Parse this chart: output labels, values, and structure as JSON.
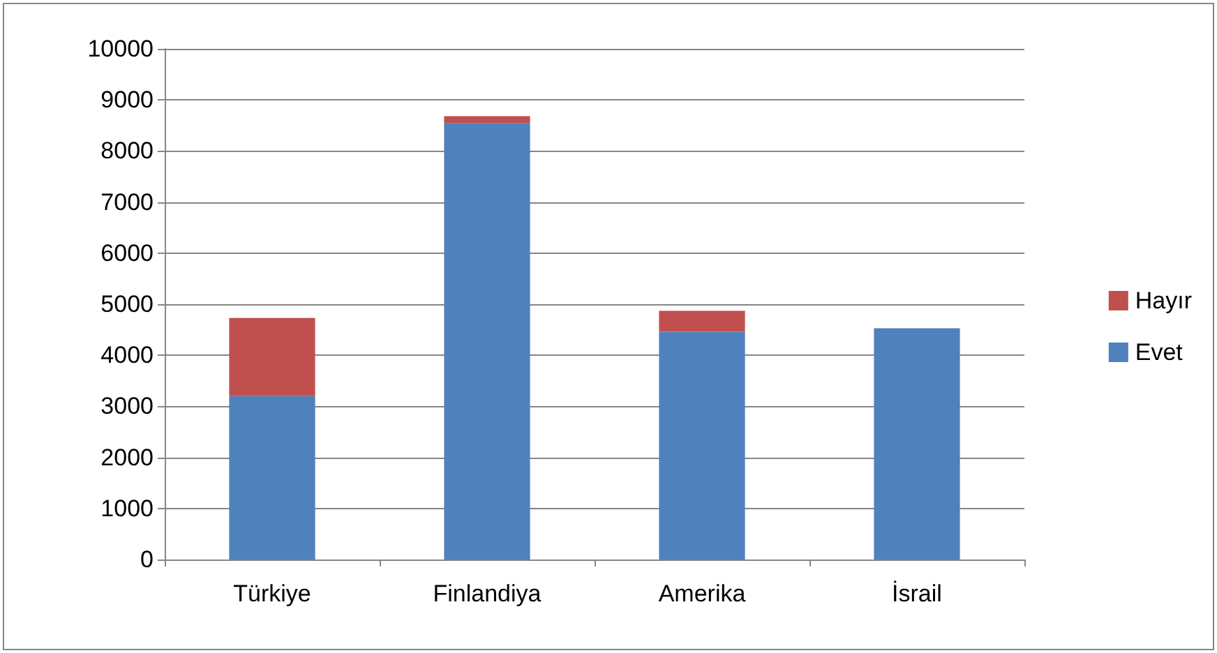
{
  "chart_data": {
    "type": "bar",
    "stacked": true,
    "categories": [
      "Türkiye",
      "Finlandiya",
      "Amerika",
      "İsrail"
    ],
    "series": [
      {
        "name": "Evet",
        "color": "#4f81bd",
        "values": [
          3200,
          8550,
          4460,
          4530
        ]
      },
      {
        "name": "Hayır",
        "color": "#c0504d",
        "values": [
          1530,
          130,
          410,
          0
        ]
      }
    ],
    "ylim": [
      0,
      10000
    ],
    "yticks": [
      0,
      1000,
      2000,
      3000,
      4000,
      5000,
      6000,
      7000,
      8000,
      9000,
      10000
    ],
    "grid": "y",
    "legend": "right"
  }
}
